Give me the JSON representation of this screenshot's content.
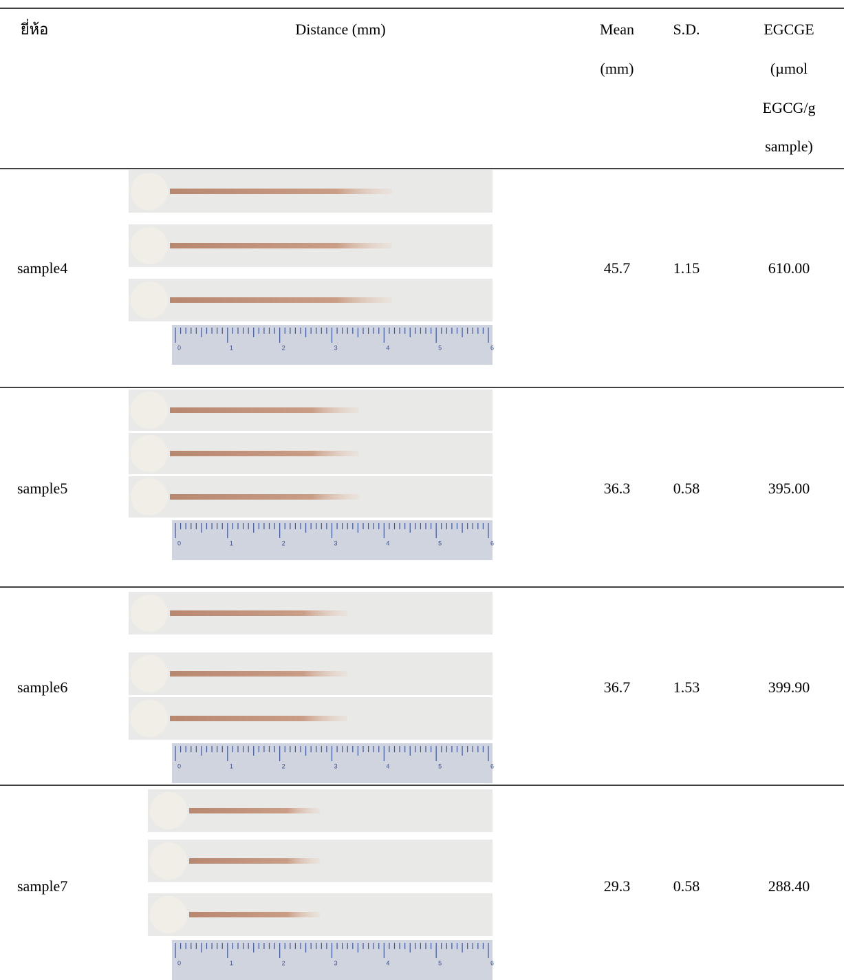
{
  "table": {
    "header": [
      "ยี่ห้อ",
      "Distance (mm)",
      [
        "Mean",
        "(mm)"
      ],
      "S.D.",
      [
        "EGCGE",
        "(µmol",
        "EGCG/g",
        "sample)"
      ]
    ],
    "rows": [
      [
        "sample4",
        "45.7",
        "1.15",
        "610.00"
      ],
      [
        "sample5",
        "36.3",
        "0.58",
        "395.00"
      ],
      [
        "sample6",
        "36.7",
        "1.53",
        "399.90"
      ],
      [
        "sample7",
        "29.3",
        "0.58",
        "288.40"
      ]
    ],
    "ruler_labels": [
      "0",
      "1",
      "2",
      "3",
      "4",
      "5",
      "6"
    ]
  }
}
